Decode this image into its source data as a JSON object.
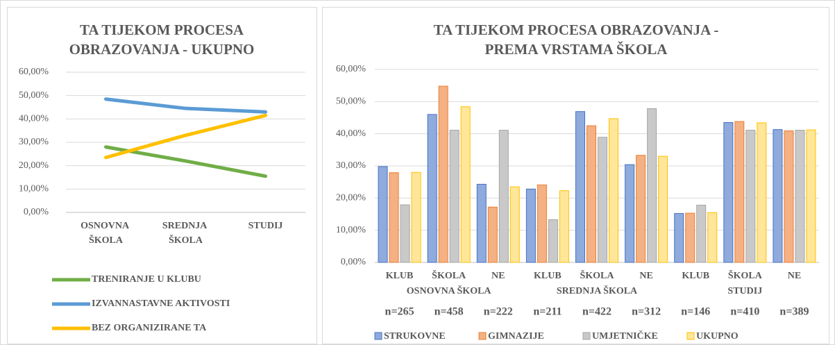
{
  "chart_data": [
    {
      "type": "line",
      "title": [
        "TA TIJEKOM PROCESA",
        "OBRAZOVANJA - UKUPNO"
      ],
      "categories": [
        "OSNOVNA ŠKOLA",
        "SREDNJA ŠKOLA",
        "STUDIJ"
      ],
      "series": [
        {
          "name": "TRENIRANJE U KLUBU",
          "color": "#70ad47",
          "values": [
            28,
            22,
            15.5
          ]
        },
        {
          "name": "IZVANNASTAVNE AKTIVOSTI",
          "color": "#5b9bd5",
          "values": [
            48.5,
            44.5,
            43
          ]
        },
        {
          "name": "BEZ ORGANIZIRANE TA",
          "color": "#ffc000",
          "values": [
            23.5,
            33,
            41.5
          ]
        }
      ],
      "ylim": [
        0,
        60
      ],
      "yticks": [
        {
          "value": 0,
          "label": "0,00%"
        },
        {
          "value": 10,
          "label": "10,00%"
        },
        {
          "value": 20,
          "label": "20,00%"
        },
        {
          "value": 30,
          "label": "30,00%"
        },
        {
          "value": 40,
          "label": "40,00%"
        },
        {
          "value": 50,
          "label": "50,00%"
        },
        {
          "value": 60,
          "label": "60,00%"
        }
      ],
      "grid": true,
      "legend": "bottom"
    },
    {
      "type": "bar",
      "title": [
        "TA TIJEKOM PROCESA OBRAZOVANJA -",
        "PREMA VRSTAMA ŠKOLA"
      ],
      "categories": [
        "KLUB",
        "ŠKOLA",
        "NE",
        "KLUB",
        "ŠKOLA",
        "NE",
        "KLUB",
        "ŠKOLA",
        "NE"
      ],
      "group_labels": [
        "OSNOVNA ŠKOLA",
        "SREDNJA ŠKOLA",
        "STUDIJ"
      ],
      "sample_sizes": [
        "n=265",
        "n=458",
        "n=222",
        "n=211",
        "n=422",
        "n=312",
        "n=146",
        "n=410",
        "n=389"
      ],
      "series": [
        {
          "name": "STRUKOVNE",
          "color": "#8faadc",
          "values": [
            29.8,
            46,
            24.3,
            22.8,
            46.9,
            30.4,
            15.2,
            43.5,
            41.3
          ]
        },
        {
          "name": "GIMNAZIJE",
          "color": "#f4b183",
          "values": [
            27.9,
            54.8,
            17.2,
            24.1,
            42.5,
            33.3,
            15.3,
            43.8,
            40.9
          ]
        },
        {
          "name": "UMJETNIČKE",
          "color": "#c9c9c9",
          "values": [
            17.9,
            41.1,
            41.1,
            13.3,
            38.9,
            47.8,
            17.8,
            41.1,
            41.1
          ]
        },
        {
          "name": "UKUPNO",
          "color": "#ffe699",
          "values": [
            28,
            48.4,
            23.5,
            22.3,
            44.7,
            33,
            15.5,
            43.4,
            41.2
          ]
        }
      ],
      "ylim": [
        0,
        60
      ],
      "yticks": [
        {
          "value": 0,
          "label": "0,00%"
        },
        {
          "value": 10,
          "label": "10,00%"
        },
        {
          "value": 20,
          "label": "20,00%"
        },
        {
          "value": 30,
          "label": "30,00%"
        },
        {
          "value": 40,
          "label": "40,00%"
        },
        {
          "value": 50,
          "label": "50,00%"
        },
        {
          "value": 60,
          "label": "60,00%"
        }
      ],
      "grid": true,
      "legend": "bottom"
    }
  ]
}
